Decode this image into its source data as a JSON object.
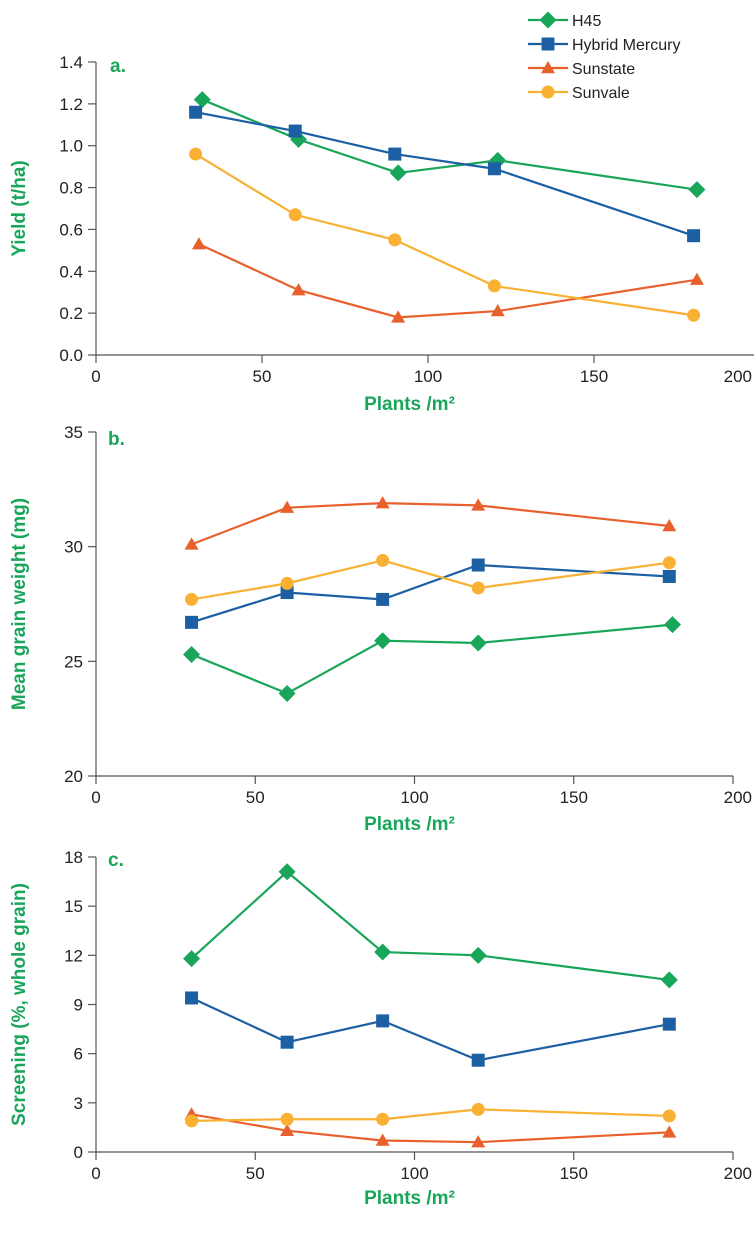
{
  "colors": {
    "H45": "#19a55a",
    "Hybrid Mercury": "#1d5fa3",
    "Sunstate": "#e8602c",
    "Sunvale": "#f8b133",
    "label_green": "#19a55a",
    "axis": "#555555"
  },
  "legend": {
    "placement": "top-right",
    "entries": [
      {
        "name": "H45",
        "marker": "diamond"
      },
      {
        "name": "Hybrid Mercury",
        "marker": "square"
      },
      {
        "name": "Sunstate",
        "marker": "triangle"
      },
      {
        "name": "Sunvale",
        "marker": "circle"
      }
    ]
  },
  "chart_data": [
    {
      "type": "line",
      "panel_label": "a.",
      "xlabel": "Plants /m²",
      "ylabel": "Yield (t/ha)",
      "xlim": [
        0,
        200
      ],
      "ylim": [
        0,
        1.4
      ],
      "xticks": [
        0,
        50,
        100,
        150,
        200
      ],
      "xtick_labels": [
        "0",
        "50",
        "100",
        "150",
        "200"
      ],
      "yticks": [
        0,
        0.2,
        0.4,
        0.6,
        0.8,
        1.0,
        1.2,
        1.4
      ],
      "ytick_labels": [
        "0.0",
        "0.2",
        "0.4",
        "0.6",
        "0.8",
        "1.0",
        "1.2",
        "1.4"
      ],
      "grid": false,
      "series": [
        {
          "name": "H45",
          "marker": "diamond",
          "x": [
            32,
            61,
            91,
            121,
            181
          ],
          "y": [
            1.22,
            1.03,
            0.87,
            0.93,
            0.79
          ]
        },
        {
          "name": "Hybrid Mercury",
          "marker": "square",
          "x": [
            30,
            60,
            90,
            120,
            180
          ],
          "y": [
            1.16,
            1.07,
            0.96,
            0.89,
            0.57
          ]
        },
        {
          "name": "Sunstate",
          "marker": "triangle",
          "x": [
            31,
            61,
            91,
            121,
            181
          ],
          "y": [
            0.53,
            0.31,
            0.18,
            0.21,
            0.36
          ]
        },
        {
          "name": "Sunvale",
          "marker": "circle",
          "x": [
            30,
            60,
            90,
            120,
            180
          ],
          "y": [
            0.96,
            0.67,
            0.55,
            0.33,
            0.19
          ]
        }
      ]
    },
    {
      "type": "line",
      "panel_label": "b.",
      "xlabel": "Plants /m²",
      "ylabel": "Mean grain weight (mg)",
      "xlim": [
        0,
        200
      ],
      "ylim": [
        20,
        35
      ],
      "xticks": [
        0,
        50,
        100,
        150,
        200
      ],
      "xtick_labels": [
        "0",
        "50",
        "100",
        "150",
        "200"
      ],
      "yticks": [
        20,
        25,
        30,
        35
      ],
      "ytick_labels": [
        "20",
        "25",
        "30",
        "35"
      ],
      "grid": false,
      "series": [
        {
          "name": "H45",
          "marker": "diamond",
          "x": [
            30,
            60,
            90,
            120,
            181
          ],
          "y": [
            25.3,
            23.6,
            25.9,
            25.8,
            26.6
          ]
        },
        {
          "name": "Hybrid Mercury",
          "marker": "square",
          "x": [
            30,
            60,
            90,
            120,
            180
          ],
          "y": [
            26.7,
            28.0,
            27.7,
            29.2,
            28.7
          ]
        },
        {
          "name": "Sunstate",
          "marker": "triangle",
          "x": [
            30,
            60,
            90,
            120,
            180
          ],
          "y": [
            30.1,
            31.7,
            31.9,
            31.8,
            30.9
          ]
        },
        {
          "name": "Sunvale",
          "marker": "circle",
          "x": [
            30,
            60,
            90,
            120,
            180
          ],
          "y": [
            27.7,
            28.4,
            29.4,
            28.2,
            29.3
          ]
        }
      ]
    },
    {
      "type": "line",
      "panel_label": "c.",
      "xlabel": "Plants /m²",
      "ylabel": "Screening (%, whole grain)",
      "xlim": [
        0,
        200
      ],
      "ylim": [
        0,
        18
      ],
      "xticks": [
        0,
        50,
        100,
        150,
        200
      ],
      "xtick_labels": [
        "0",
        "50",
        "100",
        "150",
        "200"
      ],
      "yticks": [
        0,
        3,
        6,
        9,
        12,
        15,
        18
      ],
      "ytick_labels": [
        "0",
        "3",
        "6",
        "9",
        "12",
        "15",
        "18"
      ],
      "grid": false,
      "series": [
        {
          "name": "H45",
          "marker": "diamond",
          "x": [
            30,
            60,
            90,
            120,
            180
          ],
          "y": [
            11.8,
            17.1,
            12.2,
            12.0,
            10.5
          ]
        },
        {
          "name": "Hybrid Mercury",
          "marker": "square",
          "x": [
            30,
            60,
            90,
            120,
            180
          ],
          "y": [
            9.4,
            6.7,
            8.0,
            5.6,
            7.8
          ]
        },
        {
          "name": "Sunstate",
          "marker": "triangle",
          "x": [
            30,
            60,
            90,
            120,
            180
          ],
          "y": [
            2.3,
            1.3,
            0.7,
            0.6,
            1.2
          ]
        },
        {
          "name": "Sunvale",
          "marker": "circle",
          "x": [
            30,
            60,
            90,
            120,
            180
          ],
          "y": [
            1.9,
            2.0,
            2.0,
            2.6,
            2.2
          ]
        }
      ]
    }
  ]
}
